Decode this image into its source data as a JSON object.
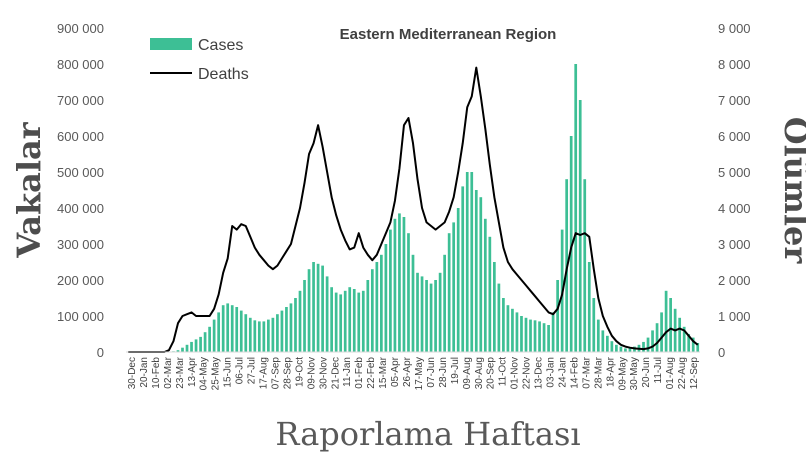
{
  "chart_data": {
    "type": "bar+line",
    "title": "Eastern Mediterranean Region",
    "ylabel_left": "Vakalar",
    "ylabel_right": "Ölümler",
    "xlabel": "Raporlama Haftası",
    "ylim_left": [
      0,
      900000
    ],
    "ylim_right": [
      0,
      9000
    ],
    "yticks_left": [
      "0",
      "100 000",
      "200 000",
      "300 000",
      "400 000",
      "500 000",
      "600 000",
      "700 000",
      "800 000",
      "900 000"
    ],
    "yticks_right": [
      "0",
      "1 000",
      "2 000",
      "3 000",
      "4 000",
      "5 000",
      "6 000",
      "7 000",
      "8 000",
      "9 000"
    ],
    "x_tick_labels": [
      "30-Dec",
      "20-Jan",
      "10-Feb",
      "02-Mar",
      "23-Mar",
      "13-Apr",
      "04-May",
      "25-May",
      "15-Jun",
      "06-Jul",
      "27-Jul",
      "17-Aug",
      "07-Sep",
      "28-Sep",
      "19-Oct",
      "09-Nov",
      "30-Nov",
      "21-Dec",
      "11-Jan",
      "01-Feb",
      "22-Feb",
      "15-Mar",
      "05-Apr",
      "26-Apr",
      "17-May",
      "07-Jun",
      "28-Jun",
      "19-Jul",
      "09-Aug",
      "30-Aug",
      "20-Sep",
      "11-Oct",
      "01-Nov",
      "22-Nov",
      "13-Dec",
      "03-Jan",
      "24-Jan",
      "14-Feb",
      "07-Mar",
      "28-Mar",
      "18-Apr",
      "09-May",
      "30-May",
      "20-Jun",
      "11-Jul",
      "01-Aug",
      "22-Aug",
      "12-Sep"
    ],
    "grid": false,
    "legend_position": "top-left",
    "series": [
      {
        "name": "Cases",
        "type": "bar",
        "axis": "left",
        "color": "#3dbf95",
        "values": [
          0,
          0,
          0,
          0,
          0,
          0,
          0,
          0,
          0,
          0,
          2000,
          5000,
          12000,
          20000,
          28000,
          35000,
          42000,
          55000,
          70000,
          90000,
          110000,
          130000,
          135000,
          130000,
          125000,
          115000,
          105000,
          95000,
          88000,
          85000,
          85000,
          90000,
          95000,
          105000,
          115000,
          125000,
          135000,
          150000,
          170000,
          200000,
          230000,
          250000,
          245000,
          240000,
          210000,
          180000,
          165000,
          160000,
          170000,
          180000,
          175000,
          165000,
          170000,
          200000,
          230000,
          250000,
          270000,
          300000,
          340000,
          370000,
          385000,
          375000,
          330000,
          270000,
          220000,
          210000,
          200000,
          190000,
          200000,
          220000,
          270000,
          330000,
          360000,
          400000,
          460000,
          500000,
          500000,
          450000,
          430000,
          370000,
          320000,
          250000,
          190000,
          150000,
          130000,
          120000,
          110000,
          100000,
          95000,
          90000,
          88000,
          85000,
          80000,
          75000,
          110000,
          200000,
          340000,
          480000,
          600000,
          800000,
          700000,
          480000,
          250000,
          150000,
          90000,
          60000,
          45000,
          30000,
          20000,
          15000,
          10000,
          12000,
          15000,
          20000,
          28000,
          40000,
          60000,
          80000,
          110000,
          170000,
          150000,
          120000,
          95000,
          70000,
          50000,
          40000,
          25000
        ]
      },
      {
        "name": "Deaths",
        "type": "line",
        "axis": "right",
        "color": "#000000",
        "values": [
          0,
          0,
          0,
          0,
          0,
          0,
          0,
          0,
          0,
          50,
          300,
          800,
          1000,
          1050,
          1100,
          1000,
          1000,
          1000,
          1000,
          1200,
          1600,
          2200,
          2600,
          3500,
          3400,
          3550,
          3500,
          3200,
          2900,
          2700,
          2550,
          2400,
          2300,
          2400,
          2600,
          2800,
          3000,
          3500,
          4000,
          4700,
          5500,
          5800,
          6300,
          5700,
          5000,
          4300,
          3800,
          3400,
          3100,
          2850,
          2900,
          3300,
          2900,
          2700,
          2550,
          2700,
          3000,
          3300,
          3600,
          4200,
          5100,
          6300,
          6500,
          5800,
          4800,
          4000,
          3600,
          3500,
          3400,
          3500,
          3600,
          3900,
          4300,
          5000,
          5800,
          6800,
          7100,
          7900,
          7100,
          6200,
          5200,
          4300,
          3600,
          2900,
          2500,
          2300,
          2150,
          2000,
          1850,
          1700,
          1550,
          1400,
          1250,
          1100,
          1050,
          1200,
          1600,
          2300,
          2900,
          3300,
          3250,
          3300,
          3200,
          2300,
          1500,
          1000,
          700,
          450,
          300,
          200,
          150,
          120,
          100,
          90,
          80,
          100,
          150,
          250,
          400,
          550,
          650,
          600,
          650,
          600,
          450,
          300,
          200
        ]
      }
    ]
  }
}
